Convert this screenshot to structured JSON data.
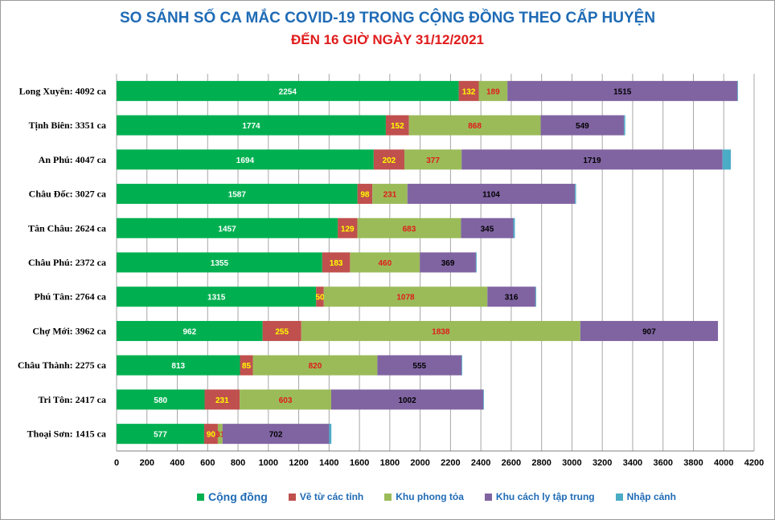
{
  "header": {
    "title": "SO SÁNH SỐ CA MẮC COVID-19 TRONG CỘNG ĐỒNG THEO CẤP HUYỆN",
    "subtitle": "ĐẾN 16 GIỜ NGÀY 31/12/2021"
  },
  "chart_data": {
    "type": "bar",
    "orientation": "horizontal",
    "stacked": true,
    "title": "SO SÁNH SỐ CA MẮC COVID-19 TRONG CỘNG ĐỒNG THEO CẤP HUYỆN",
    "subtitle": "ĐẾN 16 GIỜ NGÀY 31/12/2021",
    "xlim": [
      0,
      4200
    ],
    "x_ticks": [
      0,
      200,
      400,
      600,
      800,
      1000,
      1200,
      1400,
      1600,
      1800,
      2000,
      2200,
      2400,
      2600,
      2800,
      3000,
      3200,
      3400,
      3600,
      3800,
      4000,
      4200
    ],
    "grid": "vertical",
    "legend_position": "bottom",
    "categories": [
      "Long Xuyên: 4092 ca",
      "Tịnh Biên: 3351 ca",
      "An Phú: 4047 ca",
      "Châu Đốc: 3027 ca",
      "Tân Châu: 2624 ca",
      "Châu Phú: 2372 ca",
      "Phú Tân: 2764 ca",
      "Chợ Mới: 3962 ca",
      "Châu Thành: 2275 ca",
      "Tri Tôn:  2417 ca",
      "Thoại  Sơn: 1415 ca"
    ],
    "series": [
      {
        "name": "Cộng đồng",
        "color": "#00b050",
        "label_color": "#ffffff",
        "values": [
          2254,
          1774,
          1694,
          1587,
          1457,
          1355,
          1315,
          962,
          813,
          580,
          577
        ]
      },
      {
        "name": "Về từ các tỉnh",
        "color": "#c0504d",
        "label_color": "#ffff00",
        "values": [
          132,
          152,
          202,
          98,
          129,
          183,
          50,
          255,
          85,
          231,
          90
        ]
      },
      {
        "name": "Khu phong tỏa",
        "color": "#9bbb59",
        "label_color": "#e01b1b",
        "values": [
          189,
          868,
          377,
          231,
          683,
          460,
          1078,
          1838,
          820,
          603,
          31
        ]
      },
      {
        "name": "Khu cách ly tập trung",
        "color": "#8064a2",
        "label_color": "#000000",
        "values": [
          1515,
          549,
          1719,
          1104,
          345,
          369,
          316,
          907,
          555,
          1002,
          702
        ]
      },
      {
        "name": "Nhập cảnh",
        "color": "#4bacc6",
        "label_color": "#000000",
        "values": [
          2,
          8,
          55,
          7,
          10,
          5,
          5,
          0,
          2,
          1,
          15
        ]
      }
    ],
    "value_labels": [
      [
        "2254",
        "132",
        "189",
        "1515",
        ""
      ],
      [
        "1774",
        "152",
        "868",
        "549",
        ""
      ],
      [
        "1694",
        "202",
        "377",
        "1719",
        ""
      ],
      [
        "1587",
        "98",
        "231",
        "1104",
        ""
      ],
      [
        "1457",
        "129",
        "683",
        "345",
        ""
      ],
      [
        "1355",
        "183",
        "460",
        "369",
        ""
      ],
      [
        "1315",
        "50",
        "1078",
        "316",
        ""
      ],
      [
        "962",
        "255",
        "1838",
        "907",
        ""
      ],
      [
        "813",
        "85",
        "820",
        "555",
        ""
      ],
      [
        "580",
        "231",
        "603",
        "1002",
        ""
      ],
      [
        "577",
        "90",
        "31",
        "702",
        ""
      ]
    ]
  }
}
